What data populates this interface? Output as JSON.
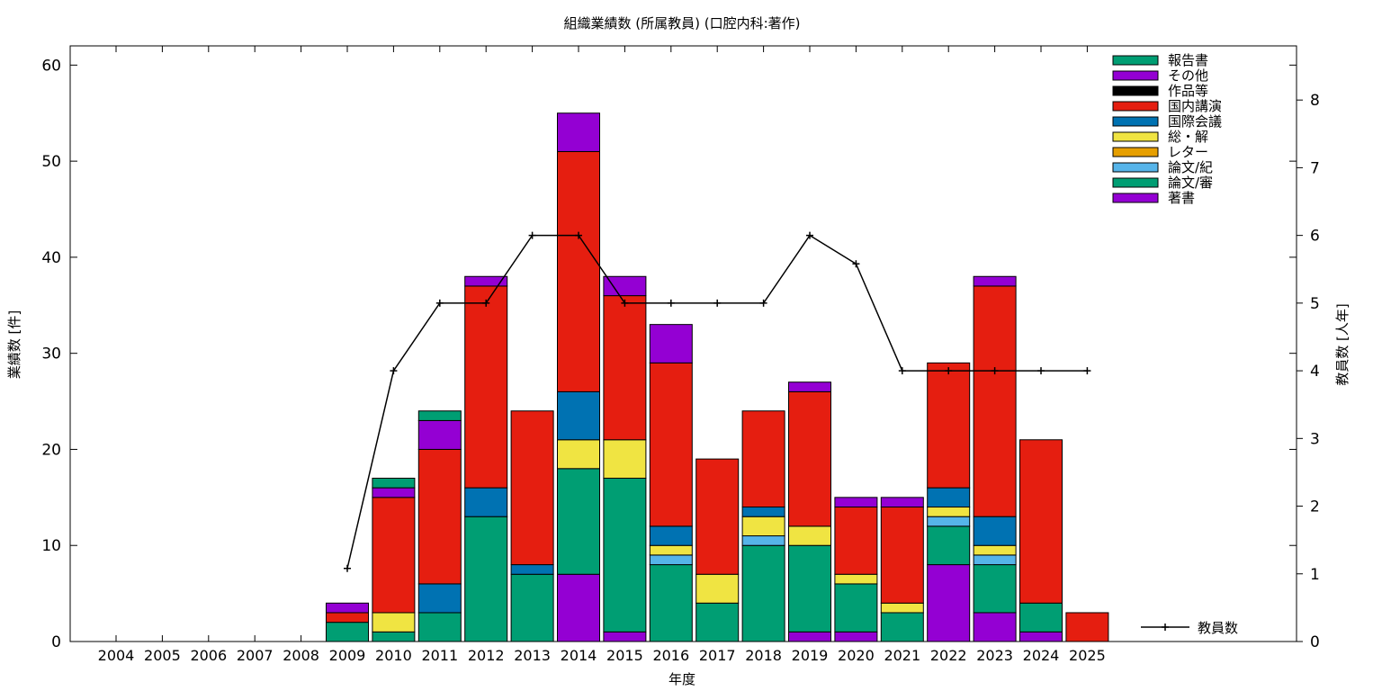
{
  "chart_data": {
    "type": "bar",
    "title": "組織業績数 (所属教員) (口腔内科:著作)",
    "xlabel": "年度",
    "ylabel": "業績数 [件]",
    "y2label": "教員数 [人年]",
    "ylim": [
      0,
      62
    ],
    "y2lim": [
      0,
      8.8
    ],
    "yticks": [
      0,
      10,
      20,
      30,
      40,
      50,
      60
    ],
    "y2ticks": [
      0,
      1,
      2,
      3,
      4,
      5,
      6,
      7,
      8
    ],
    "legend_position": "top-right",
    "categories": [
      "2004",
      "2005",
      "2006",
      "2007",
      "2008",
      "2009",
      "2010",
      "2011",
      "2012",
      "2013",
      "2014",
      "2015",
      "2016",
      "2017",
      "2018",
      "2019",
      "2020",
      "2021",
      "2022",
      "2023",
      "2024",
      "2025"
    ],
    "stack_order": [
      "著書",
      "論文/審",
      "論文/紀",
      "レター",
      "総・解",
      "国際会議",
      "国内講演",
      "作品等",
      "その他",
      "報告書"
    ],
    "series": [
      {
        "name": "報告書",
        "color": "#009e73",
        "values": [
          0,
          0,
          0,
          0,
          0,
          0,
          1,
          1,
          0,
          0,
          0,
          0,
          0,
          0,
          0,
          0,
          0,
          0,
          0,
          0,
          0,
          0
        ]
      },
      {
        "name": "その他",
        "color": "#9400d3",
        "values": [
          0,
          0,
          0,
          0,
          0,
          1,
          1,
          3,
          1,
          0,
          4,
          2,
          4,
          0,
          0,
          1,
          1,
          1,
          0,
          1,
          0,
          0
        ]
      },
      {
        "name": "作品等",
        "color": "#000000",
        "values": [
          0,
          0,
          0,
          0,
          0,
          0,
          0,
          0,
          0,
          0,
          0,
          0,
          0,
          0,
          0,
          0,
          0,
          0,
          0,
          0,
          0,
          0
        ]
      },
      {
        "name": "国内講演",
        "color": "#e51e10",
        "values": [
          0,
          0,
          0,
          0,
          0,
          1,
          12,
          14,
          21,
          16,
          25,
          15,
          17,
          12,
          10,
          14,
          7,
          10,
          13,
          24,
          17,
          3
        ]
      },
      {
        "name": "国際会議",
        "color": "#0072b2",
        "values": [
          0,
          0,
          0,
          0,
          0,
          0,
          0,
          3,
          3,
          1,
          5,
          0,
          2,
          0,
          1,
          0,
          0,
          0,
          2,
          3,
          0,
          0
        ]
      },
      {
        "name": "総・解",
        "color": "#f0e442",
        "values": [
          0,
          0,
          0,
          0,
          0,
          0,
          2,
          0,
          0,
          0,
          3,
          4,
          1,
          3,
          2,
          2,
          1,
          1,
          1,
          1,
          0,
          0
        ]
      },
      {
        "name": "レター",
        "color": "#e69f00",
        "values": [
          0,
          0,
          0,
          0,
          0,
          0,
          0,
          0,
          0,
          0,
          0,
          0,
          0,
          0,
          0,
          0,
          0,
          0,
          0,
          0,
          0,
          0
        ]
      },
      {
        "name": "論文/紀",
        "color": "#56b4e9",
        "values": [
          0,
          0,
          0,
          0,
          0,
          0,
          0,
          0,
          0,
          0,
          0,
          0,
          1,
          0,
          1,
          0,
          0,
          0,
          1,
          1,
          0,
          0
        ]
      },
      {
        "name": "論文/審",
        "color": "#009e73",
        "values": [
          0,
          0,
          0,
          0,
          0,
          2,
          1,
          3,
          13,
          7,
          11,
          16,
          8,
          4,
          10,
          9,
          5,
          3,
          4,
          5,
          3,
          0
        ]
      },
      {
        "name": "著書",
        "color": "#9400d3",
        "values": [
          0,
          0,
          0,
          0,
          0,
          0,
          0,
          0,
          0,
          0,
          7,
          1,
          0,
          0,
          0,
          1,
          1,
          0,
          8,
          3,
          1,
          0
        ]
      }
    ],
    "line_series": {
      "name": "教員数",
      "color": "#000000",
      "axis": "y2",
      "x": [
        "2009",
        "2010",
        "2011",
        "2012",
        "2013",
        "2014",
        "2015",
        "2016",
        "2017",
        "2018",
        "2019",
        "2020",
        "2021",
        "2022",
        "2023",
        "2024",
        "2025"
      ],
      "values": [
        1.08,
        4.0,
        5.0,
        5.0,
        6.0,
        6.0,
        5.0,
        5.0,
        5.0,
        5.0,
        6.0,
        5.58,
        4.0,
        4.0,
        4.0,
        4.0,
        4.0
      ]
    }
  }
}
